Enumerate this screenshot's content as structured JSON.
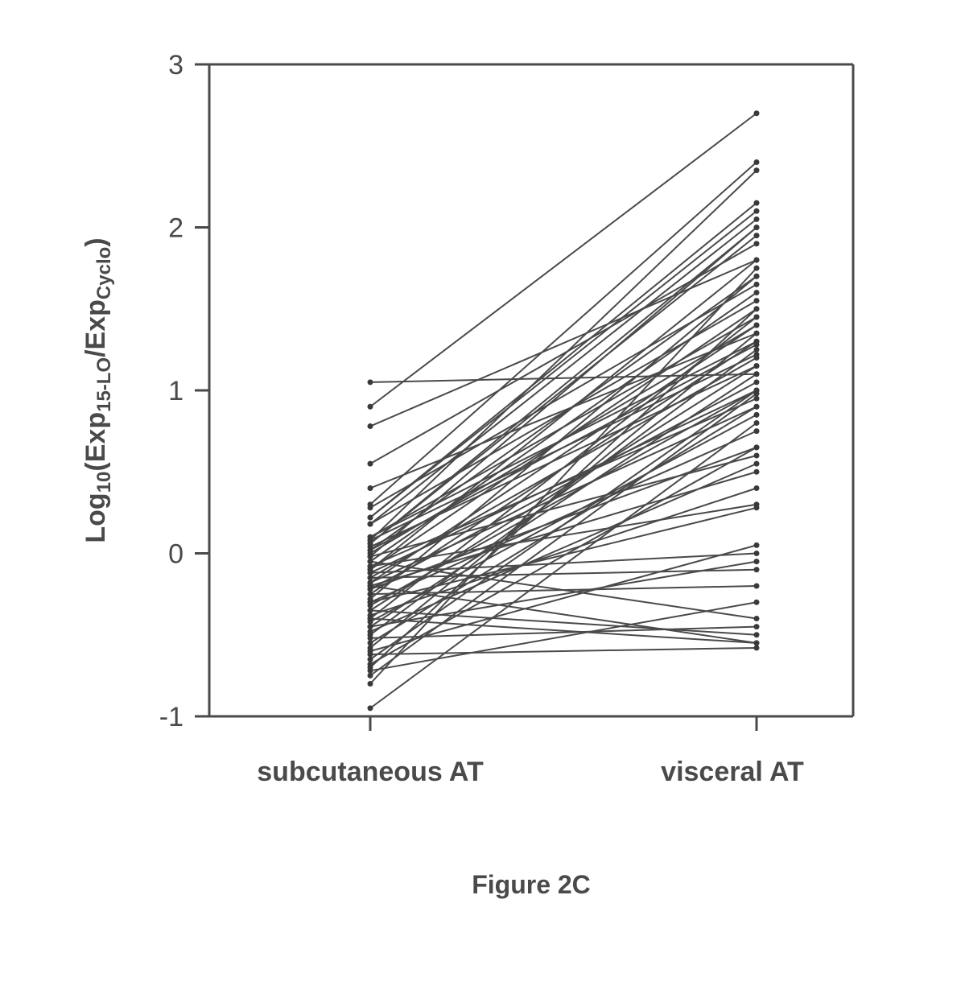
{
  "chart": {
    "type": "slopegraph",
    "figure_caption": "Figure 2C",
    "caption_fontsize": 32,
    "caption_fontweight": "bold",
    "caption_color": "#4a4a4a",
    "background_color": "#ffffff",
    "axis_color": "#4a4a4a",
    "axis_width": 3,
    "tick_length": 18,
    "ylabel_parts": [
      {
        "text": "Log",
        "sub": false,
        "italic": false
      },
      {
        "text": "10",
        "sub": true,
        "italic": false
      },
      {
        "text": "(Exp",
        "sub": false,
        "italic": false
      },
      {
        "text": "15-LO",
        "sub": true,
        "italic": false
      },
      {
        "text": "/Exp",
        "sub": false,
        "italic": false
      },
      {
        "text": "Cyclo",
        "sub": true,
        "italic": false
      },
      {
        "text": ")",
        "sub": false,
        "italic": false
      }
    ],
    "ylabel_fontsize": 34,
    "ylabel_sub_fontsize": 24,
    "ylabel_color": "#4a4a4a",
    "ylim": [
      -1,
      3
    ],
    "yticks": [
      -1,
      0,
      1,
      2,
      3
    ],
    "ytick_fontsize": 34,
    "ytick_color": "#4a4a4a",
    "x_categories": [
      "subcutaneous AT",
      "visceral AT"
    ],
    "xtick_fontsize": 34,
    "xtick_fontweight": "bold",
    "xtick_color": "#4a4a4a",
    "marker_radius": 3.5,
    "marker_color": "#3a3a3a",
    "line_color": "#4a4a4a",
    "line_width": 2,
    "pairs": [
      [
        1.05,
        1.1
      ],
      [
        0.9,
        2.7
      ],
      [
        0.78,
        1.8
      ],
      [
        0.55,
        1.9
      ],
      [
        0.4,
        1.35
      ],
      [
        0.3,
        2.4
      ],
      [
        0.28,
        1.65
      ],
      [
        0.22,
        2.15
      ],
      [
        0.22,
        2.1
      ],
      [
        0.18,
        1.55
      ],
      [
        0.18,
        2.05
      ],
      [
        0.1,
        1.45
      ],
      [
        0.1,
        1.3
      ],
      [
        0.08,
        2.35
      ],
      [
        0.08,
        1.22
      ],
      [
        0.06,
        2.0
      ],
      [
        0.06,
        1.95
      ],
      [
        0.04,
        1.15
      ],
      [
        0.02,
        1.7
      ],
      [
        0.02,
        1.28
      ],
      [
        0.0,
        1.4
      ],
      [
        -0.02,
        2.0
      ],
      [
        -0.02,
        0.6
      ],
      [
        -0.05,
        1.6
      ],
      [
        -0.05,
        -0.4
      ],
      [
        -0.08,
        0.95
      ],
      [
        -0.08,
        0.3
      ],
      [
        -0.1,
        1.5
      ],
      [
        -0.1,
        1.8
      ],
      [
        -0.12,
        1.0
      ],
      [
        -0.12,
        0.0
      ],
      [
        -0.15,
        1.2
      ],
      [
        -0.15,
        -0.1
      ],
      [
        -0.18,
        1.4
      ],
      [
        -0.18,
        0.9
      ],
      [
        -0.2,
        0.5
      ],
      [
        -0.2,
        -0.55
      ],
      [
        -0.22,
        1.05
      ],
      [
        -0.22,
        0.65
      ],
      [
        -0.25,
        1.3
      ],
      [
        -0.25,
        -0.2
      ],
      [
        -0.28,
        1.7
      ],
      [
        -0.3,
        0.75
      ],
      [
        -0.3,
        0.28
      ],
      [
        -0.32,
        1.0
      ],
      [
        -0.35,
        1.15
      ],
      [
        -0.35,
        -0.5
      ],
      [
        -0.38,
        0.4
      ],
      [
        -0.4,
        1.45
      ],
      [
        -0.4,
        -0.55
      ],
      [
        -0.42,
        0.85
      ],
      [
        -0.45,
        1.1
      ],
      [
        -0.45,
        -0.05
      ],
      [
        -0.48,
        0.55
      ],
      [
        -0.5,
        1.25
      ],
      [
        -0.52,
        -0.45
      ],
      [
        -0.55,
        0.9
      ],
      [
        -0.58,
        1.35
      ],
      [
        -0.6,
        0.05
      ],
      [
        -0.62,
        -0.58
      ],
      [
        -0.65,
        1.0
      ],
      [
        -0.68,
        0.65
      ],
      [
        -0.7,
        1.5
      ],
      [
        -0.72,
        -0.3
      ],
      [
        -0.75,
        0.98
      ],
      [
        -0.8,
        1.75
      ],
      [
        -0.95,
        0.8
      ]
    ]
  }
}
